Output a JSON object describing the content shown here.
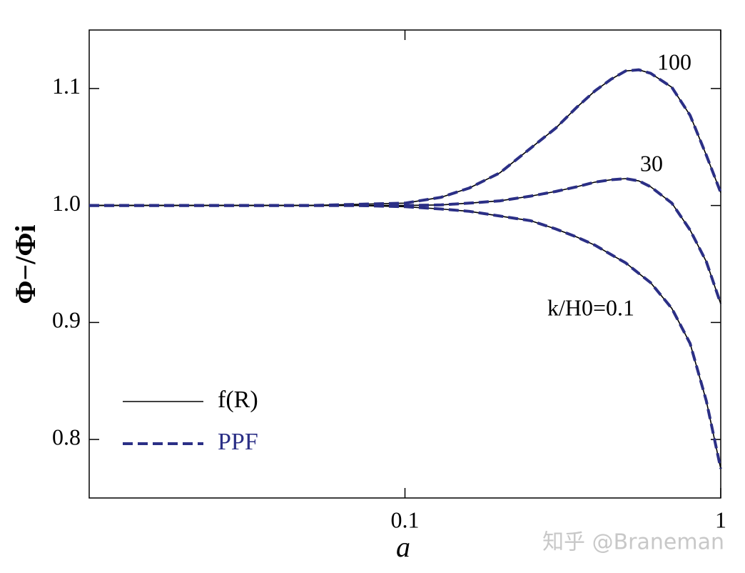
{
  "chart_data": {
    "type": "line",
    "x_label": "a",
    "y_label": "Φ−/Φi",
    "x": [
      0.01,
      0.02,
      0.03,
      0.05,
      0.07,
      0.1,
      0.13,
      0.16,
      0.2,
      0.25,
      0.3,
      0.35,
      0.4,
      0.45,
      0.5,
      0.55,
      0.6,
      0.7,
      0.8,
      0.9,
      1.0
    ],
    "series": [
      {
        "name": "100",
        "values": [
          1.0,
          1.0,
          1.0,
          1.0,
          1.001,
          1.002,
          1.007,
          1.015,
          1.028,
          1.049,
          1.066,
          1.084,
          1.098,
          1.108,
          1.115,
          1.116,
          1.113,
          1.101,
          1.077,
          1.043,
          1.011
        ]
      },
      {
        "name": "30",
        "values": [
          1.0,
          1.0,
          1.0,
          1.0,
          1.0,
          1.0,
          1.0005,
          1.002,
          1.004,
          1.008,
          1.012,
          1.016,
          1.02,
          1.022,
          1.023,
          1.021,
          1.016,
          1.002,
          0.979,
          0.952,
          0.916
        ]
      },
      {
        "name": "k/H0=0.1",
        "values": [
          1.0,
          1.0,
          1.0,
          1.0,
          1.0,
          0.999,
          0.997,
          0.995,
          0.991,
          0.987,
          0.98,
          0.973,
          0.966,
          0.958,
          0.951,
          0.942,
          0.934,
          0.912,
          0.882,
          0.833,
          0.775
        ]
      }
    ],
    "styles": [
      {
        "name": "f(R)",
        "color": "#000000",
        "dashed": false
      },
      {
        "name": "PPF",
        "color": "#2b2f86",
        "dashed": true
      }
    ],
    "xlim": [
      0.01,
      1
    ],
    "xticks": [
      0.1,
      1
    ],
    "xscale": "log",
    "ylim": [
      0.75,
      1.15
    ],
    "yticks": [
      0.8,
      0.9,
      {
        "value": 1.0,
        "label": "1.0"
      },
      1.1
    ],
    "watermark": "知乎 @Braneman"
  }
}
